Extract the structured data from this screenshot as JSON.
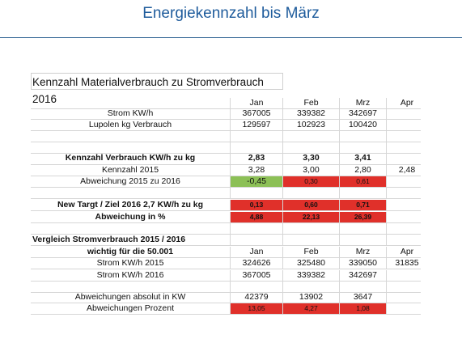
{
  "title": "Energiekennzahl bis März",
  "sheet1": {
    "heading": "Kennzahl  Materialverbrauch zu Stromverbrauch 2016",
    "months": [
      "Jan",
      "Feb",
      "Mrz",
      "Apr"
    ],
    "rows": [
      {
        "label": "Strom KW/h",
        "values": [
          "367005",
          "339382",
          "342697"
        ]
      },
      {
        "label": "Lupolen kg Verbrauch",
        "values": [
          "129597",
          "102923",
          "100420"
        ]
      },
      {
        "label": "Kennzahl  Verbrauch KW/h zu kg",
        "values": [
          "2,83",
          "3,30",
          "3,41"
        ]
      },
      {
        "label": "Kennzahl 2015",
        "values": [
          "3,28",
          "3,00",
          "2,80",
          "2,48"
        ]
      },
      {
        "label": "Abweichung 2015 zu 2016",
        "values": [
          "-0,45",
          "0,30",
          "0,61"
        ]
      },
      {
        "label": "New Targt / Ziel 2016  2,7 KW/h  zu kg",
        "values": [
          "0,13",
          "0,60",
          "0,71"
        ]
      },
      {
        "label": "Abweichung in %",
        "values": [
          "4,88",
          "22,13",
          "26,39"
        ]
      }
    ]
  },
  "sheet2": {
    "heading": [
      "Vergleich Stromverbrauch 2015 / 2016",
      "wichtig für die 50.001"
    ],
    "months": [
      "Jan",
      "Feb",
      "Mrz",
      "Apr"
    ],
    "rows": [
      {
        "label": "Strom KW/h 2015",
        "values": [
          "324626",
          "325480",
          "339050",
          "31835"
        ]
      },
      {
        "label": "Strom KW/h 2016",
        "values": [
          "367005",
          "339382",
          "342697"
        ]
      },
      {
        "label": "Abweichungen  absolut in KW",
        "values": [
          "42379",
          "13902",
          "3647"
        ]
      },
      {
        "label": "Abweichungen  Prozent",
        "values": [
          "13,05",
          "4,27",
          "1,08"
        ]
      }
    ]
  }
}
